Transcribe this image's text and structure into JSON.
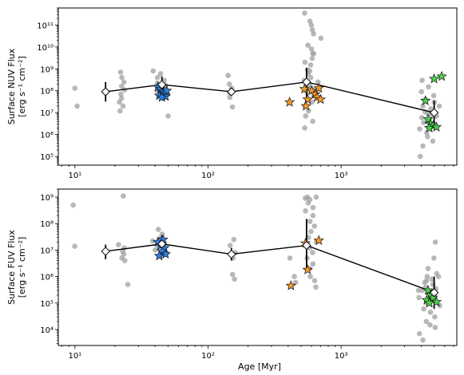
{
  "chart_data": [
    {
      "type": "scatter",
      "ylabel_line1": "Surface NUV Flux",
      "ylabel_line2": "[erg s⁻¹ cm⁻²]",
      "xlabel": "",
      "xscale": "log",
      "yscale": "log",
      "xlim": [
        7.5,
        7400
      ],
      "ylim": [
        40000.0,
        600000000000.0
      ],
      "x_ticks": [
        {
          "v": 10,
          "label": "10¹"
        },
        {
          "v": 100,
          "label": "10²"
        },
        {
          "v": 1000,
          "label": "10³"
        }
      ],
      "y_ticks": [
        {
          "v": 100000.0,
          "label": "10⁵"
        },
        {
          "v": 1000000.0,
          "label": "10⁶"
        },
        {
          "v": 10000000.0,
          "label": "10⁷"
        },
        {
          "v": 100000000.0,
          "label": "10⁸"
        },
        {
          "v": 1000000000.0,
          "label": "10⁹"
        },
        {
          "v": 10000000000.0,
          "label": "10¹⁰"
        },
        {
          "v": 100000000000.0,
          "label": "10¹¹"
        }
      ],
      "background_stars": [
        {
          "x": 10,
          "y": 130000000.0
        },
        {
          "x": 10,
          "y": 20000000.0
        },
        {
          "x": 22,
          "y": 700000000.0
        },
        {
          "x": 22,
          "y": 400000000.0
        },
        {
          "x": 23,
          "y": 250000000.0
        },
        {
          "x": 22,
          "y": 160000000.0
        },
        {
          "x": 23,
          "y": 110000000.0
        },
        {
          "x": 22,
          "y": 70000000.0
        },
        {
          "x": 23,
          "y": 45000000.0
        },
        {
          "x": 22,
          "y": 30000000.0
        },
        {
          "x": 23,
          "y": 20000000.0
        },
        {
          "x": 22,
          "y": 12000000.0
        },
        {
          "x": 40,
          "y": 800000000.0
        },
        {
          "x": 44,
          "y": 600000000.0
        },
        {
          "x": 42,
          "y": 400000000.0
        },
        {
          "x": 46,
          "y": 300000000.0
        },
        {
          "x": 40,
          "y": 220000000.0
        },
        {
          "x": 47,
          "y": 180000000.0
        },
        {
          "x": 43,
          "y": 140000000.0
        },
        {
          "x": 41,
          "y": 100000000.0
        },
        {
          "x": 48,
          "y": 70000000.0
        },
        {
          "x": 49,
          "y": 7000000.0
        },
        {
          "x": 45,
          "y": 45000000.0
        },
        {
          "x": 145,
          "y": 500000000.0
        },
        {
          "x": 150,
          "y": 200000000.0
        },
        {
          "x": 155,
          "y": 130000000.0
        },
        {
          "x": 148,
          "y": 80000000.0
        },
        {
          "x": 152,
          "y": 50000000.0
        },
        {
          "x": 158,
          "y": 18000000.0
        },
        {
          "x": 545,
          "y": 350000000000.0
        },
        {
          "x": 560,
          "y": 150000000000.0
        },
        {
          "x": 580,
          "y": 100000000000.0
        },
        {
          "x": 600,
          "y": 60000000000.0
        },
        {
          "x": 610,
          "y": 40000000000.0
        },
        {
          "x": 700,
          "y": 25000000000.0
        },
        {
          "x": 550,
          "y": 12000000000.0
        },
        {
          "x": 575,
          "y": 8000000000.0
        },
        {
          "x": 590,
          "y": 5000000000.0
        },
        {
          "x": 620,
          "y": 3000000000.0
        },
        {
          "x": 540,
          "y": 2000000000.0
        },
        {
          "x": 600,
          "y": 1500000000.0
        },
        {
          "x": 560,
          "y": 900000000.0
        },
        {
          "x": 580,
          "y": 600000000.0
        },
        {
          "x": 610,
          "y": 400000000.0
        },
        {
          "x": 535,
          "y": 300000000.0
        },
        {
          "x": 650,
          "y": 250000000.0
        },
        {
          "x": 570,
          "y": 180000000.0
        },
        {
          "x": 590,
          "y": 130000000.0
        },
        {
          "x": 545,
          "y": 90000000.0
        },
        {
          "x": 620,
          "y": 60000000.0
        },
        {
          "x": 560,
          "y": 40000000.0
        },
        {
          "x": 600,
          "y": 30000000.0
        },
        {
          "x": 540,
          "y": 20000000.0
        },
        {
          "x": 580,
          "y": 12000000.0
        },
        {
          "x": 555,
          "y": 7000000.0
        },
        {
          "x": 615,
          "y": 4000000.0
        },
        {
          "x": 545,
          "y": 2000000.0
        },
        {
          "x": 600,
          "y": 800000000.0
        },
        {
          "x": 640,
          "y": 5000000000.0
        },
        {
          "x": 4200,
          "y": 300000000.0
        },
        {
          "x": 4500,
          "y": 150000000.0
        },
        {
          "x": 4000,
          "y": 90000000.0
        },
        {
          "x": 4800,
          "y": 60000000.0
        },
        {
          "x": 4300,
          "y": 40000000.0
        },
        {
          "x": 5000,
          "y": 30000000.0
        },
        {
          "x": 4100,
          "y": 20000000.0
        },
        {
          "x": 4600,
          "y": 15000000.0
        },
        {
          "x": 4400,
          "y": 11000000.0
        },
        {
          "x": 4900,
          "y": 8000000.0
        },
        {
          "x": 4150,
          "y": 6000000.0
        },
        {
          "x": 4700,
          "y": 4500000.0
        },
        {
          "x": 4250,
          "y": 3500000.0
        },
        {
          "x": 5100,
          "y": 2500000.0
        },
        {
          "x": 4050,
          "y": 1800000.0
        },
        {
          "x": 4550,
          "y": 1200000.0
        },
        {
          "x": 4350,
          "y": 800000.0
        },
        {
          "x": 4850,
          "y": 500000.0
        },
        {
          "x": 4000,
          "y": 300000.0
        },
        {
          "x": 3900,
          "y": 100000.0
        },
        {
          "x": 5200,
          "y": 7000000.0
        },
        {
          "x": 5300,
          "y": 20000000.0
        },
        {
          "x": 4450,
          "y": 2200000.0
        },
        {
          "x": 4650,
          "y": 9000000.0
        }
      ],
      "cluster_means": [
        {
          "x": 17,
          "y": 90000000.0,
          "ylo": 32000000.0,
          "yhi": 250000000.0
        },
        {
          "x": 45,
          "y": 190000000.0,
          "ylo": 90000000.0,
          "yhi": 450000000.0
        },
        {
          "x": 150,
          "y": 90000000.0,
          "ylo": 70000000.0,
          "yhi": 120000000.0
        },
        {
          "x": 550,
          "y": 250000000.0,
          "ylo": 35000000.0,
          "yhi": 1100000000.0
        },
        {
          "x": 5000,
          "y": 10000000.0,
          "ylo": 2000000.0,
          "yhi": 35000000.0
        }
      ],
      "highlight_stars": [
        {
          "group": "blue",
          "x": 42,
          "y": 150000000.0
        },
        {
          "group": "blue",
          "x": 44,
          "y": 120000000.0
        },
        {
          "group": "blue",
          "x": 45,
          "y": 90000000.0
        },
        {
          "group": "blue",
          "x": 46,
          "y": 80000000.0
        },
        {
          "group": "blue",
          "x": 47,
          "y": 70000000.0
        },
        {
          "group": "blue",
          "x": 43,
          "y": 60000000.0
        },
        {
          "group": "blue",
          "x": 48,
          "y": 55000000.0
        },
        {
          "group": "blue",
          "x": 45,
          "y": 50000000.0
        },
        {
          "group": "blue",
          "x": 49,
          "y": 100000000.0
        },
        {
          "group": "orange",
          "x": 410,
          "y": 30000000.0
        },
        {
          "group": "orange",
          "x": 530,
          "y": 120000000.0
        },
        {
          "group": "orange",
          "x": 560,
          "y": 40000000.0
        },
        {
          "group": "orange",
          "x": 545,
          "y": 20000000.0
        },
        {
          "group": "orange",
          "x": 600,
          "y": 100000000.0
        },
        {
          "group": "orange",
          "x": 640,
          "y": 70000000.0
        },
        {
          "group": "orange",
          "x": 660,
          "y": 50000000.0
        },
        {
          "group": "orange",
          "x": 700,
          "y": 40000000.0
        },
        {
          "group": "orange",
          "x": 680,
          "y": 130000000.0
        },
        {
          "group": "green",
          "x": 4300,
          "y": 35000000.0
        },
        {
          "group": "green",
          "x": 5000,
          "y": 350000000.0
        },
        {
          "group": "green",
          "x": 5700,
          "y": 450000000.0
        },
        {
          "group": "green",
          "x": 4500,
          "y": 5000000.0
        },
        {
          "group": "green",
          "x": 4700,
          "y": 3000000.0
        },
        {
          "group": "green",
          "x": 4900,
          "y": 2500000.0
        },
        {
          "group": "green",
          "x": 4600,
          "y": 2000000.0
        },
        {
          "group": "green",
          "x": 5200,
          "y": 2200000.0
        }
      ]
    },
    {
      "type": "scatter",
      "ylabel_line1": "Surface FUV Flux",
      "ylabel_line2": "[erg s⁻¹ cm⁻²]",
      "xlabel": "Age [Myr]",
      "xscale": "log",
      "yscale": "log",
      "xlim": [
        7.5,
        7400
      ],
      "ylim": [
        2500.0,
        2000000000.0
      ],
      "x_ticks": [
        {
          "v": 10,
          "label": "10¹"
        },
        {
          "v": 100,
          "label": "10²"
        },
        {
          "v": 1000,
          "label": "10³"
        }
      ],
      "y_ticks": [
        {
          "v": 10000.0,
          "label": "10⁴"
        },
        {
          "v": 100000.0,
          "label": "10⁵"
        },
        {
          "v": 1000000.0,
          "label": "10⁶"
        },
        {
          "v": 10000000.0,
          "label": "10⁷"
        },
        {
          "v": 100000000.0,
          "label": "10⁸"
        },
        {
          "v": 1000000000.0,
          "label": "10⁹"
        }
      ],
      "background_stars": [
        {
          "x": 10,
          "y": 500000000.0
        },
        {
          "x": 10,
          "y": 14000000.0
        },
        {
          "x": 24,
          "y": 1100000000.0
        },
        {
          "x": 22,
          "y": 16000000.0
        },
        {
          "x": 23,
          "y": 12000000.0
        },
        {
          "x": 22,
          "y": 9000000.0
        },
        {
          "x": 23,
          "y": 7000000.0
        },
        {
          "x": 22,
          "y": 5000000.0
        },
        {
          "x": 23,
          "y": 4000000.0
        },
        {
          "x": 24,
          "y": 500000.0
        },
        {
          "x": 42,
          "y": 60000000.0
        },
        {
          "x": 44,
          "y": 40000000.0
        },
        {
          "x": 46,
          "y": 30000000.0
        },
        {
          "x": 40,
          "y": 22000000.0
        },
        {
          "x": 48,
          "y": 18000000.0
        },
        {
          "x": 43,
          "y": 14000000.0
        },
        {
          "x": 41,
          "y": 10000000.0
        },
        {
          "x": 49,
          "y": 8000000.0
        },
        {
          "x": 45,
          "y": 6000000.0
        },
        {
          "x": 150,
          "y": 25000000.0
        },
        {
          "x": 145,
          "y": 15000000.0
        },
        {
          "x": 155,
          "y": 8000000.0
        },
        {
          "x": 148,
          "y": 5000000.0
        },
        {
          "x": 152,
          "y": 1200000.0
        },
        {
          "x": 158,
          "y": 800000.0
        },
        {
          "x": 400,
          "y": 5000000.0
        },
        {
          "x": 440,
          "y": 1000000.0
        },
        {
          "x": 470,
          "y": 600000.0
        },
        {
          "x": 560,
          "y": 1000000000.0
        },
        {
          "x": 600,
          "y": 800000000.0
        },
        {
          "x": 580,
          "y": 600000000.0
        },
        {
          "x": 620,
          "y": 400000000.0
        },
        {
          "x": 545,
          "y": 300000000.0
        },
        {
          "x": 640,
          "y": 200000000.0
        },
        {
          "x": 570,
          "y": 120000000.0
        },
        {
          "x": 610,
          "y": 80000000.0
        },
        {
          "x": 590,
          "y": 50000000.0
        },
        {
          "x": 550,
          "y": 30000000.0
        },
        {
          "x": 630,
          "y": 20000000.0
        },
        {
          "x": 575,
          "y": 12000000.0
        },
        {
          "x": 600,
          "y": 8000000.0
        },
        {
          "x": 560,
          "y": 5000000.0
        },
        {
          "x": 620,
          "y": 3000000.0
        },
        {
          "x": 585,
          "y": 2000000.0
        },
        {
          "x": 610,
          "y": 1000000.0
        },
        {
          "x": 640,
          "y": 700000.0
        },
        {
          "x": 650,
          "y": 400000.0
        },
        {
          "x": 540,
          "y": 900000000.0
        },
        {
          "x": 660,
          "y": 1000000000.0
        },
        {
          "x": 5000,
          "y": 20000000.0
        },
        {
          "x": 4800,
          "y": 5000000.0
        },
        {
          "x": 4500,
          "y": 2000000.0
        },
        {
          "x": 5200,
          "y": 1300000.0
        },
        {
          "x": 4300,
          "y": 1000000.0
        },
        {
          "x": 4700,
          "y": 800000.0
        },
        {
          "x": 4100,
          "y": 600000.0
        },
        {
          "x": 4900,
          "y": 500000.0
        },
        {
          "x": 4400,
          "y": 400000.0
        },
        {
          "x": 5300,
          "y": 350000.0
        },
        {
          "x": 4200,
          "y": 300000.0
        },
        {
          "x": 4600,
          "y": 250000.0
        },
        {
          "x": 5100,
          "y": 200000.0
        },
        {
          "x": 4000,
          "y": 160000.0
        },
        {
          "x": 4750,
          "y": 130000.0
        },
        {
          "x": 4350,
          "y": 100000.0
        },
        {
          "x": 5400,
          "y": 80000.0
        },
        {
          "x": 4050,
          "y": 60000.0
        },
        {
          "x": 4550,
          "y": 45000.0
        },
        {
          "x": 4950,
          "y": 30000.0
        },
        {
          "x": 4250,
          "y": 20000.0
        },
        {
          "x": 4650,
          "y": 15000.0
        },
        {
          "x": 5150,
          "y": 12000.0
        },
        {
          "x": 3900,
          "y": 7000.0
        },
        {
          "x": 4150,
          "y": 4000.0
        },
        {
          "x": 5500,
          "y": 1000000.0
        },
        {
          "x": 4450,
          "y": 700000.0
        },
        {
          "x": 3950,
          "y": 300000.0
        }
      ],
      "cluster_means": [
        {
          "x": 17,
          "y": 9000000.0,
          "ylo": 4500000.0,
          "yhi": 16000000.0
        },
        {
          "x": 45,
          "y": 17000000.0,
          "ylo": 6000000.0,
          "yhi": 35000000.0
        },
        {
          "x": 150,
          "y": 7000000.0,
          "ylo": 4000000.0,
          "yhi": 12000000.0
        },
        {
          "x": 550,
          "y": 15000000.0,
          "ylo": 2000000.0,
          "yhi": 150000000.0
        },
        {
          "x": 5000,
          "y": 250000.0,
          "ylo": 60000.0,
          "yhi": 1000000.0
        }
      ],
      "highlight_stars": [
        {
          "group": "blue",
          "x": 42,
          "y": 20000000.0
        },
        {
          "group": "blue",
          "x": 44,
          "y": 15000000.0
        },
        {
          "group": "blue",
          "x": 46,
          "y": 25000000.0
        },
        {
          "group": "blue",
          "x": 47,
          "y": 12000000.0
        },
        {
          "group": "blue",
          "x": 45,
          "y": 9000000.0
        },
        {
          "group": "blue",
          "x": 48,
          "y": 7000000.0
        },
        {
          "group": "blue",
          "x": 43,
          "y": 6000000.0
        },
        {
          "group": "orange",
          "x": 420,
          "y": 450000.0
        },
        {
          "group": "orange",
          "x": 540,
          "y": 18000000.0
        },
        {
          "group": "orange",
          "x": 560,
          "y": 1800000.0
        },
        {
          "group": "orange",
          "x": 680,
          "y": 23000000.0
        },
        {
          "group": "green",
          "x": 4500,
          "y": 300000.0
        },
        {
          "group": "green",
          "x": 4700,
          "y": 200000.0
        },
        {
          "group": "green",
          "x": 4400,
          "y": 130000.0
        },
        {
          "group": "green",
          "x": 4900,
          "y": 160000.0
        },
        {
          "group": "green",
          "x": 5200,
          "y": 110000.0
        },
        {
          "group": "green",
          "x": 4600,
          "y": 100000.0
        }
      ]
    }
  ],
  "colors": {
    "background_points": "#a0a0a0",
    "blue": "#2f7fe0",
    "orange": "#f39a2c",
    "green": "#4ccf4c",
    "line": "#000000"
  }
}
